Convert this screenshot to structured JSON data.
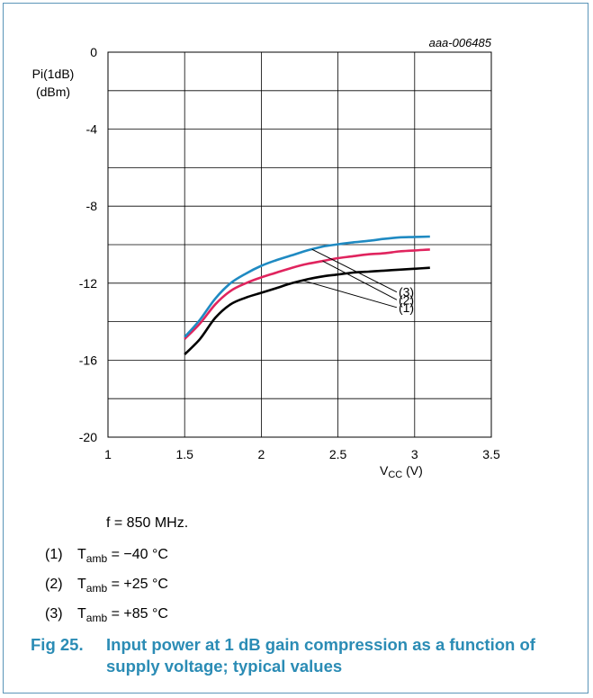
{
  "chart_data": {
    "type": "line",
    "code": "aaa-006485",
    "ylabel_line1": "Pi(1dB)",
    "ylabel_line2": "(dBm)",
    "xlabel_main": "V",
    "xlabel_sub": "CC",
    "xlabel_unit": " (V)",
    "xlim": [
      1,
      3.5
    ],
    "ylim": [
      -20,
      0
    ],
    "xticks": [
      "1",
      "1.5",
      "2",
      "2.5",
      "3",
      "3.5"
    ],
    "yticks": [
      "0",
      "-4",
      "-8",
      "-12",
      "-16",
      "-20"
    ],
    "grid": true,
    "series": [
      {
        "name": "(1)",
        "color": "#000000",
        "x": [
          1.5,
          1.6,
          1.7,
          1.8,
          1.9,
          2.0,
          2.1,
          2.2,
          2.3,
          2.4,
          2.5,
          2.6,
          2.7,
          2.8,
          2.9,
          3.0,
          3.1
        ],
        "y": [
          -15.7,
          -14.9,
          -13.8,
          -13.1,
          -12.75,
          -12.5,
          -12.25,
          -12.0,
          -11.8,
          -11.65,
          -11.55,
          -11.45,
          -11.4,
          -11.35,
          -11.3,
          -11.25,
          -11.2
        ]
      },
      {
        "name": "(2)",
        "color": "#e0245e",
        "x": [
          1.5,
          1.6,
          1.7,
          1.8,
          1.9,
          2.0,
          2.1,
          2.2,
          2.3,
          2.4,
          2.5,
          2.6,
          2.7,
          2.8,
          2.9,
          3.0,
          3.1
        ],
        "y": [
          -14.9,
          -14.1,
          -13.1,
          -12.4,
          -12.0,
          -11.7,
          -11.45,
          -11.2,
          -11.0,
          -10.85,
          -10.7,
          -10.6,
          -10.5,
          -10.45,
          -10.35,
          -10.3,
          -10.25
        ]
      },
      {
        "name": "(3)",
        "color": "#1f8ac2",
        "x": [
          1.5,
          1.6,
          1.7,
          1.8,
          1.9,
          2.0,
          2.1,
          2.2,
          2.3,
          2.4,
          2.5,
          2.6,
          2.7,
          2.8,
          2.9,
          3.0,
          3.1
        ],
        "y": [
          -14.8,
          -13.9,
          -12.8,
          -12.0,
          -11.5,
          -11.1,
          -10.8,
          -10.55,
          -10.3,
          -10.1,
          -9.98,
          -9.88,
          -9.8,
          -9.7,
          -9.62,
          -9.6,
          -9.58
        ]
      }
    ]
  },
  "notes": {
    "freq": "f = 850 MHz.",
    "legend": [
      {
        "num": "(1)",
        "t": "T",
        "sub": "amb",
        "value": " = −40 °C"
      },
      {
        "num": "(2)",
        "t": "T",
        "sub": "amb",
        "value": " = +25 °C"
      },
      {
        "num": "(3)",
        "t": "T",
        "sub": "amb",
        "value": " = +85 °C"
      }
    ]
  },
  "caption": {
    "fig": "Fig 25.",
    "text": "Input power at 1 dB gain compression as a function of supply voltage; typical values"
  }
}
